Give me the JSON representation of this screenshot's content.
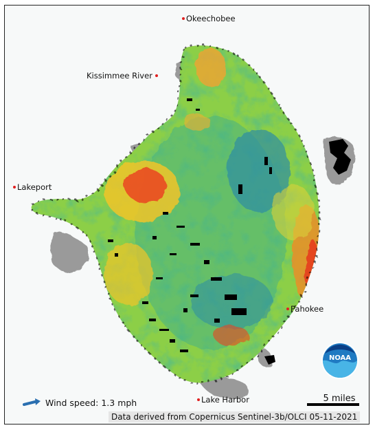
{
  "map": {
    "places": [
      {
        "name": "Okeechobee",
        "side": "right"
      },
      {
        "name": "Kissimmee River",
        "side": "left"
      },
      {
        "name": "Lakeport",
        "side": "right"
      },
      {
        "name": "Pahokee",
        "side": "right"
      },
      {
        "name": "Lake Harbor",
        "side": "right"
      }
    ],
    "wind_label": "Wind speed: 1.3 mph",
    "scale_label": "5 miles",
    "credit": "Data derived from Copernicus Sentinel-3b/OLCI 05-11-2021",
    "logo_text": "NOAA",
    "colors": {
      "land_mask": "#999999",
      "no_data": "#000000",
      "dot": "#e02020",
      "low": "#2e8fa0",
      "mid": "#7ccf4a",
      "high": "#f0d22a",
      "very_high": "#e8301e"
    }
  }
}
